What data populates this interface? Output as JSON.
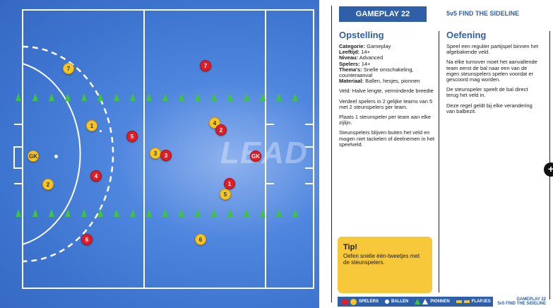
{
  "header": {
    "badge": "GAMEPLAY 22",
    "title": "5v5 FIND THE SIDELINE"
  },
  "setup": {
    "heading": "Opstelling",
    "meta": [
      {
        "label": "Categorie:",
        "value": " Gameplay"
      },
      {
        "label": "Leeftijd:",
        "value": " 14+"
      },
      {
        "label": "Niveau:",
        "value": " Advanced"
      },
      {
        "label": "Spelers:",
        "value": " 14+"
      },
      {
        "label": "Thema's:",
        "value": " Snelle omschakeling, counteraanval"
      },
      {
        "label": "Materiaal:",
        "value": " Ballen, hesjes, pionnen"
      }
    ],
    "paragraphs": [
      "Veld: Halve lengte, verminderde breedte",
      "Verdeel spelers in 2 gelijke teams van 5 met 2 steunspelers per team.",
      "Plaats 1 steunspeler per team aan elke zijlijn.",
      "Steunspelers blijven buiten het veld en mogen niet tackelen of deelnemen in het speelveld."
    ]
  },
  "exercise": {
    "heading": "Oefening",
    "paragraphs": [
      "Speel een regulier partijspel binnen het afgebakende veld.",
      "Na elke turnover moet het aanvallende team eerst de bal naar een van de eigen steunspelers spelen voordat er gescoord mag worden.",
      "De steunspeler speelt de bal direct terug het veld in.",
      "Deze regel geldt bij elke verandering van balbezit."
    ]
  },
  "tip": {
    "title": "Tip!",
    "text": "Oefen snelle één-tweetjes met de steunspelers."
  },
  "legend": {
    "players": "SPELERS",
    "balls": "BALLEN",
    "cones": "PIONNEN",
    "flags": "FLAPJES"
  },
  "footer": {
    "line1": "GAMEPLAY 22",
    "line2": "5v5 FIND THE SIDELINE"
  },
  "field": {
    "logo": "LEAD",
    "players": [
      {
        "team": "yellow",
        "label": "7"
      },
      {
        "team": "yellow",
        "label": "1"
      },
      {
        "team": "yellow",
        "label": "GK"
      },
      {
        "team": "yellow",
        "label": "2"
      },
      {
        "team": "yellow",
        "label": "3"
      },
      {
        "team": "yellow",
        "label": "4"
      },
      {
        "team": "yellow",
        "label": "5"
      },
      {
        "team": "yellow",
        "label": "6"
      },
      {
        "team": "red",
        "label": "7"
      },
      {
        "team": "red",
        "label": "5"
      },
      {
        "team": "red",
        "label": "3"
      },
      {
        "team": "red",
        "label": "2"
      },
      {
        "team": "red",
        "label": "GK"
      },
      {
        "team": "red",
        "label": "4"
      },
      {
        "team": "red",
        "label": "1"
      },
      {
        "team": "red",
        "label": "6"
      }
    ]
  },
  "colors": {
    "brand_blue": "#2f5fa8",
    "team_yellow": "#f5c525",
    "team_red": "#e21d25",
    "cone_green": "#3fc43f",
    "tip_yellow": "#f7c83a"
  }
}
